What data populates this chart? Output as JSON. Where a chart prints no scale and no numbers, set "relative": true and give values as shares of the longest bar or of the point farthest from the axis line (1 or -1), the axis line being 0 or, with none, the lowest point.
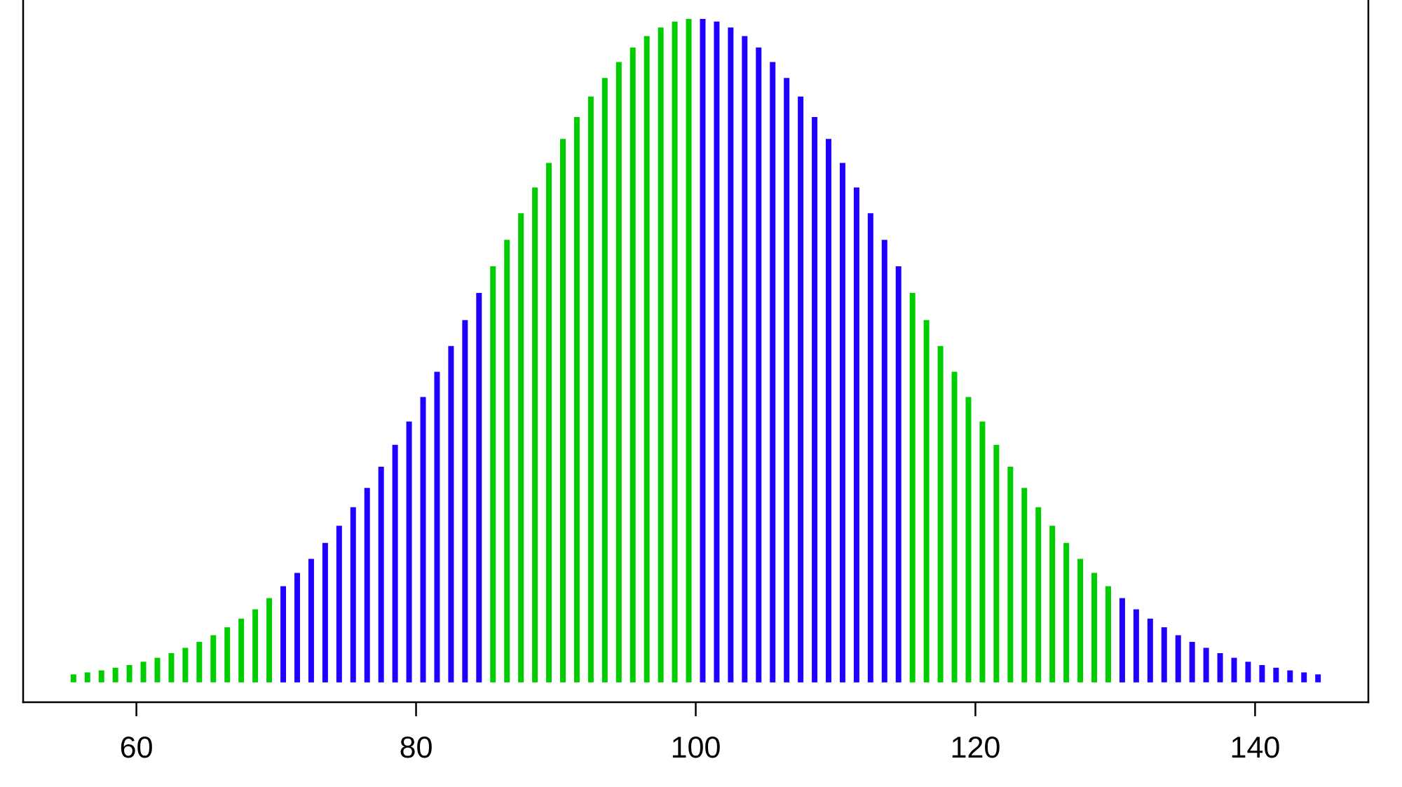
{
  "chart_data": {
    "type": "bar",
    "relative": true,
    "x": [
      55.5,
      56.5,
      57.5,
      58.5,
      59.5,
      60.5,
      61.5,
      62.5,
      63.5,
      64.5,
      65.5,
      66.5,
      67.5,
      68.5,
      69.5,
      70.5,
      71.5,
      72.5,
      73.5,
      74.5,
      75.5,
      76.5,
      77.5,
      78.5,
      79.5,
      80.5,
      81.5,
      82.5,
      83.5,
      84.5,
      85.5,
      86.5,
      87.5,
      88.5,
      89.5,
      90.5,
      91.5,
      92.5,
      93.5,
      94.5,
      95.5,
      96.5,
      97.5,
      98.5,
      99.5,
      100.5,
      101.5,
      102.5,
      103.5,
      104.5,
      105.5,
      106.5,
      107.5,
      108.5,
      109.5,
      110.5,
      111.5,
      112.5,
      113.5,
      114.5,
      115.5,
      116.5,
      117.5,
      118.5,
      119.5,
      120.5,
      121.5,
      122.5,
      123.5,
      124.5,
      125.5,
      126.5,
      127.5,
      128.5,
      129.5,
      130.5,
      131.5,
      132.5,
      133.5,
      134.5,
      135.5,
      136.5,
      137.5,
      138.5,
      139.5,
      140.5,
      141.5,
      142.5,
      143.5,
      144.5
    ],
    "values": [
      0.012,
      0.015,
      0.018,
      0.022,
      0.026,
      0.031,
      0.037,
      0.044,
      0.052,
      0.061,
      0.071,
      0.083,
      0.096,
      0.11,
      0.127,
      0.145,
      0.165,
      0.186,
      0.21,
      0.236,
      0.264,
      0.293,
      0.325,
      0.358,
      0.393,
      0.43,
      0.468,
      0.507,
      0.546,
      0.587,
      0.627,
      0.667,
      0.707,
      0.746,
      0.783,
      0.819,
      0.852,
      0.883,
      0.911,
      0.935,
      0.957,
      0.974,
      0.987,
      0.996,
      1,
      1,
      0.996,
      0.987,
      0.974,
      0.957,
      0.935,
      0.911,
      0.883,
      0.852,
      0.819,
      0.783,
      0.746,
      0.707,
      0.667,
      0.627,
      0.587,
      0.546,
      0.507,
      0.468,
      0.43,
      0.393,
      0.358,
      0.325,
      0.293,
      0.264,
      0.236,
      0.21,
      0.186,
      0.165,
      0.145,
      0.127,
      0.11,
      0.096,
      0.083,
      0.071,
      0.061,
      0.052,
      0.044,
      0.037,
      0.031,
      0.026,
      0.022,
      0.018,
      0.015,
      0.012
    ],
    "colors": [
      "#00cd00",
      "#00cd00",
      "#00cd00",
      "#00cd00",
      "#00cd00",
      "#00cd00",
      "#00cd00",
      "#00cd00",
      "#00cd00",
      "#00cd00",
      "#00cd00",
      "#00cd00",
      "#00cd00",
      "#00cd00",
      "#00cd00",
      "#1f00ff",
      "#1f00ff",
      "#1f00ff",
      "#1f00ff",
      "#1f00ff",
      "#1f00ff",
      "#1f00ff",
      "#1f00ff",
      "#1f00ff",
      "#1f00ff",
      "#1f00ff",
      "#1f00ff",
      "#1f00ff",
      "#1f00ff",
      "#1f00ff",
      "#00cd00",
      "#00cd00",
      "#00cd00",
      "#00cd00",
      "#00cd00",
      "#00cd00",
      "#00cd00",
      "#00cd00",
      "#00cd00",
      "#00cd00",
      "#00cd00",
      "#00cd00",
      "#00cd00",
      "#00cd00",
      "#00cd00",
      "#1f00ff",
      "#1f00ff",
      "#1f00ff",
      "#1f00ff",
      "#1f00ff",
      "#1f00ff",
      "#1f00ff",
      "#1f00ff",
      "#1f00ff",
      "#1f00ff",
      "#1f00ff",
      "#1f00ff",
      "#1f00ff",
      "#1f00ff",
      "#1f00ff",
      "#00cd00",
      "#00cd00",
      "#00cd00",
      "#00cd00",
      "#00cd00",
      "#00cd00",
      "#00cd00",
      "#00cd00",
      "#00cd00",
      "#00cd00",
      "#00cd00",
      "#00cd00",
      "#00cd00",
      "#00cd00",
      "#00cd00",
      "#1f00ff",
      "#1f00ff",
      "#1f00ff",
      "#1f00ff",
      "#1f00ff",
      "#1f00ff",
      "#1f00ff",
      "#1f00ff",
      "#1f00ff",
      "#1f00ff",
      "#1f00ff",
      "#1f00ff",
      "#1f00ff",
      "#1f00ff",
      "#1f00ff"
    ],
    "xlim": [
      51.9,
      148.1
    ],
    "xticks": [
      60,
      80,
      100,
      120,
      140
    ],
    "tick_labels": "x"
  }
}
